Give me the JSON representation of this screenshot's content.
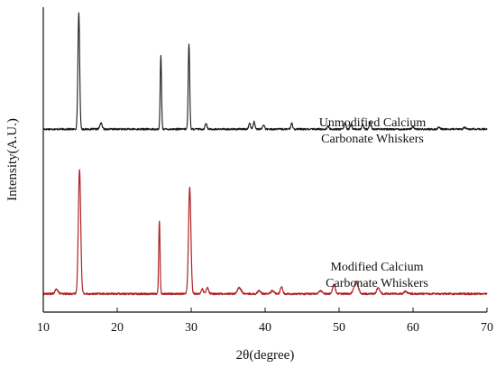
{
  "chart_data": {
    "type": "line",
    "title": "",
    "xlabel": "2θ(degree)",
    "ylabel": "Intensity(A.U.)",
    "xlim": [
      10,
      70
    ],
    "xticks": [
      10,
      20,
      30,
      40,
      50,
      60,
      70
    ],
    "y_ticks_shown": false,
    "grid": false,
    "legend": "none",
    "series": [
      {
        "key": "unmodified",
        "annotation": [
          "Unmodified Calcium",
          "Carbonate Whiskers"
        ],
        "color": "#1a1a1a",
        "baseline": 0.6,
        "peaks": [
          [
            14.8,
            0.38,
            0.12
          ],
          [
            17.8,
            0.02,
            0.15
          ],
          [
            25.9,
            0.24,
            0.09
          ],
          [
            29.7,
            0.28,
            0.1
          ],
          [
            32.0,
            0.02,
            0.12
          ],
          [
            37.9,
            0.02,
            0.12
          ],
          [
            38.5,
            0.025,
            0.12
          ],
          [
            39.8,
            0.015,
            0.12
          ],
          [
            43.6,
            0.02,
            0.12
          ],
          [
            48.5,
            0.01,
            0.12
          ],
          [
            50.8,
            0.02,
            0.12
          ],
          [
            51.6,
            0.015,
            0.12
          ],
          [
            53.2,
            0.015,
            0.12
          ],
          [
            54.2,
            0.025,
            0.12
          ],
          [
            60.0,
            0.008,
            0.15
          ],
          [
            63.5,
            0.006,
            0.15
          ],
          [
            67.0,
            0.006,
            0.15
          ]
        ]
      },
      {
        "key": "modified",
        "annotation": [
          "Modified Calcium",
          "Carbonate Whiskers"
        ],
        "color": "#b22222",
        "baseline": 0.06,
        "peaks": [
          [
            11.8,
            0.015,
            0.2
          ],
          [
            14.9,
            0.41,
            0.16
          ],
          [
            25.7,
            0.24,
            0.09
          ],
          [
            29.8,
            0.35,
            0.16
          ],
          [
            31.5,
            0.015,
            0.15
          ],
          [
            32.2,
            0.02,
            0.15
          ],
          [
            36.5,
            0.02,
            0.25
          ],
          [
            39.2,
            0.01,
            0.2
          ],
          [
            41.0,
            0.01,
            0.2
          ],
          [
            42.2,
            0.025,
            0.15
          ],
          [
            47.5,
            0.01,
            0.2
          ],
          [
            49.3,
            0.03,
            0.18
          ],
          [
            52.3,
            0.04,
            0.28
          ],
          [
            55.3,
            0.02,
            0.2
          ],
          [
            59.0,
            0.008,
            0.2
          ]
        ]
      }
    ]
  }
}
